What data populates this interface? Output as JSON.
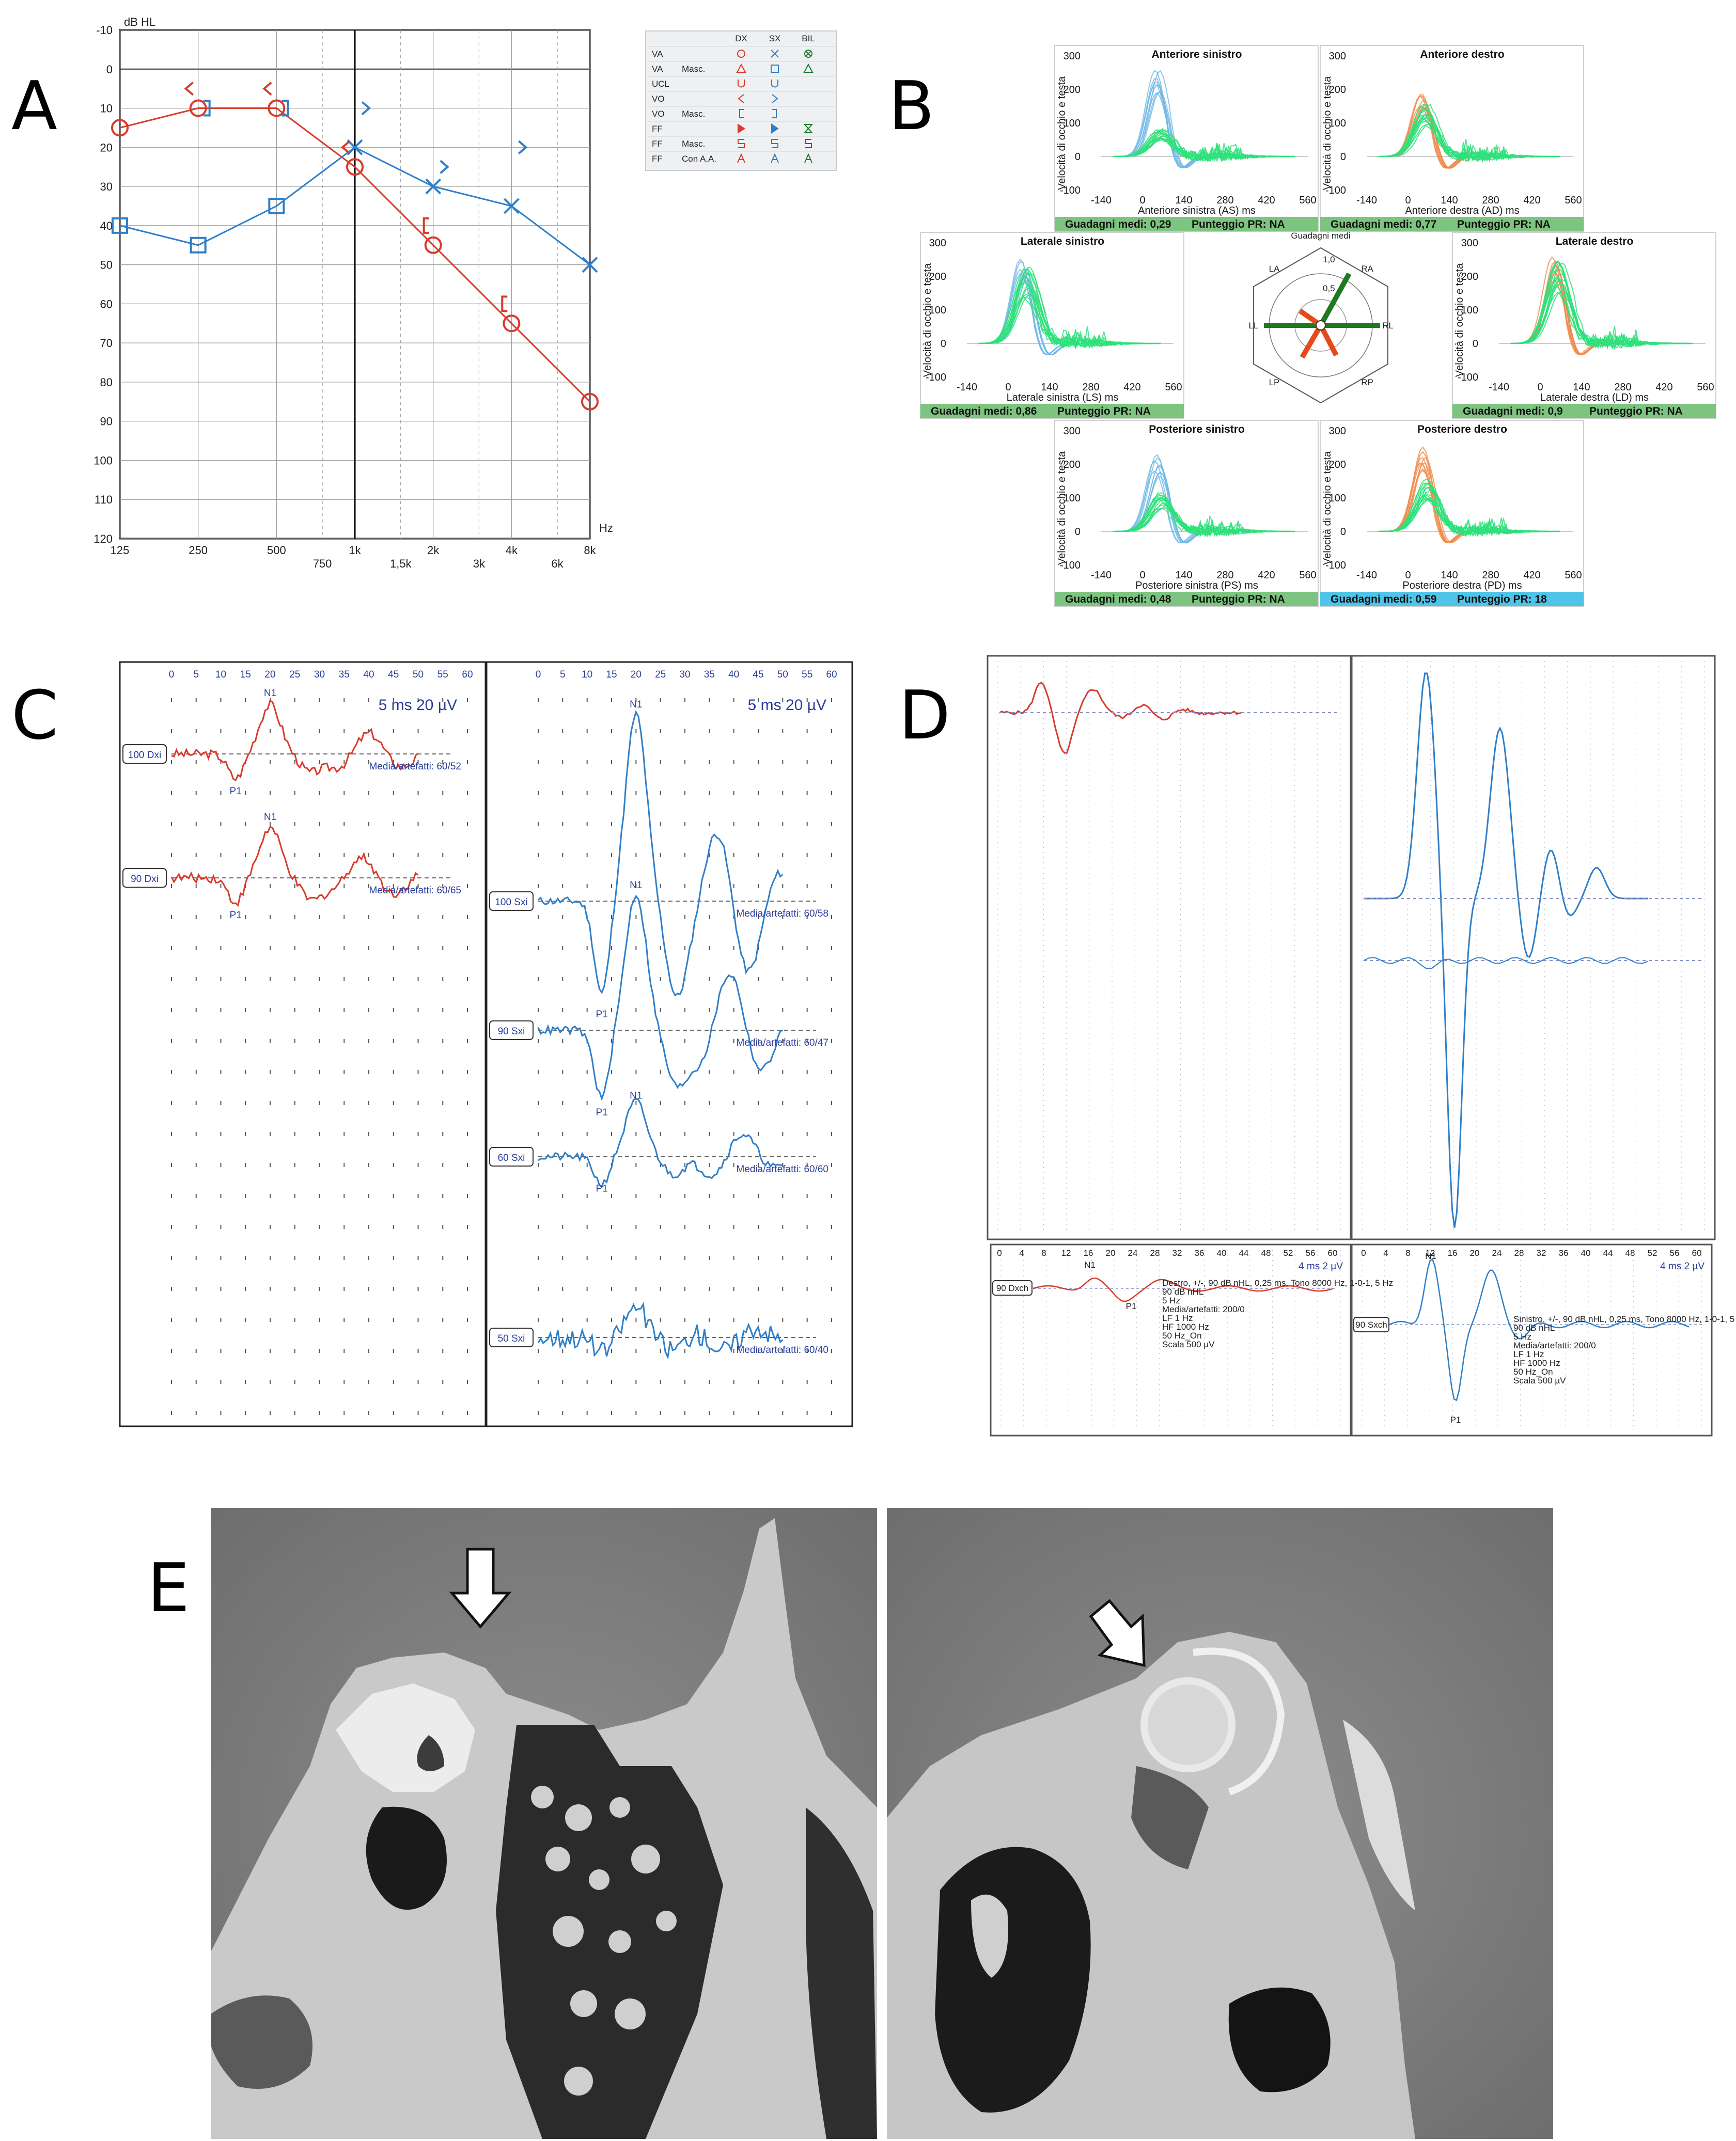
{
  "panel_letters": [
    "A",
    "B",
    "C",
    "D",
    "E"
  ],
  "colors": {
    "right_ear": "#d93a2b",
    "left_ear": "#2f7fc8",
    "vhit_normal": "#2ee07a",
    "vhit_head_left": "#6fb8e6",
    "vhit_head_right": "#f08a4b",
    "green_bar": "#7cc47f",
    "cyan_bar": "#4fc3e8",
    "waveform_blue": "#2a3d9a"
  },
  "chart_data": [
    {
      "panel": "A",
      "type": "line",
      "ylabel": "dB HL",
      "xunit": "Hz",
      "y_ticks": [
        "-10",
        "0",
        "10",
        "20",
        "30",
        "40",
        "50",
        "60",
        "70",
        "80",
        "90",
        "100",
        "110",
        "120"
      ],
      "x_ticks_main": [
        "125",
        "250",
        "500",
        "1k",
        "2k",
        "4k",
        "8k"
      ],
      "x_ticks_inter": [
        "750",
        "1,5k",
        "3k",
        "6k"
      ],
      "ylim": [
        -10,
        120
      ],
      "y_inverted": true,
      "series": [
        {
          "ear": "right",
          "symbol": "circle",
          "x": [
            "125",
            "250",
            "500",
            "1k",
            "2k",
            "4k",
            "8k"
          ],
          "values": [
            15,
            10,
            10,
            25,
            45,
            65,
            85
          ]
        },
        {
          "ear": "left",
          "symbol": "square/cross",
          "x": [
            "125",
            "250",
            "500",
            "1k",
            "2k",
            "4k",
            "8k"
          ],
          "values": [
            40,
            45,
            35,
            20,
            30,
            35,
            50
          ]
        }
      ],
      "bone_right": [
        {
          "x": "250",
          "y": 5
        },
        {
          "x": "500",
          "y": 5
        },
        {
          "x": "1k",
          "y": 20
        },
        {
          "x": "2k",
          "y": 40
        },
        {
          "x": "4k",
          "y": 60
        }
      ],
      "bone_left": [
        {
          "x": "1k",
          "y": 10
        },
        {
          "x": "2k",
          "y": 25
        },
        {
          "x": "4k",
          "y": 20
        }
      ],
      "masked_bone_left": [
        {
          "x": "250",
          "y": 10
        },
        {
          "x": "500",
          "y": 10
        }
      ],
      "legend": {
        "headers": [
          "DX",
          "SX",
          "BIL"
        ],
        "rows": [
          {
            "label": "VA",
            "sub": ""
          },
          {
            "label": "VA",
            "sub": "Masc."
          },
          {
            "label": "UCL",
            "sub": ""
          },
          {
            "label": "VO",
            "sub": ""
          },
          {
            "label": "VO",
            "sub": "Masc."
          },
          {
            "label": "FF",
            "sub": ""
          },
          {
            "label": "FF",
            "sub": "Masc."
          },
          {
            "label": "FF",
            "sub": "Con A.A."
          }
        ]
      }
    },
    {
      "panel": "B",
      "type": "line",
      "ylabel": "Velocità di occhio e testa",
      "x_ticks": [
        "-140",
        "0",
        "140",
        "280",
        "420",
        "560"
      ],
      "y_ticks": [
        "300",
        "200",
        "100",
        "0",
        "-100"
      ],
      "center": {
        "title": "Guadagni medi",
        "labels": [
          "LA",
          "RA",
          "LL",
          "RL",
          "LP",
          "RP"
        ],
        "rings": [
          "0,5",
          "1,0"
        ]
      },
      "subplots": [
        {
          "title": "Anteriore sinistro",
          "xlabel": "Anteriore sinistra (AS) ms",
          "gain": "Guadagni medi: 0,29",
          "score": "Punteggio PR: NA",
          "head": "left",
          "bar": "green"
        },
        {
          "title": "Anteriore destro",
          "xlabel": "Anteriore destra (AD) ms",
          "gain": "Guadagni medi: 0,77",
          "score": "Punteggio PR: NA",
          "head": "right",
          "bar": "green"
        },
        {
          "title": "Laterale sinistro",
          "xlabel": "Laterale sinistra (LS) ms",
          "gain": "Guadagni medi: 0,86",
          "score": "Punteggio PR: NA",
          "head": "left",
          "bar": "green"
        },
        {
          "title": "Laterale destro",
          "xlabel": "Laterale destra (LD) ms",
          "gain": "Guadagni medi: 0,9",
          "score": "Punteggio PR: NA",
          "head": "right",
          "bar": "green"
        },
        {
          "title": "Posteriore sinistro",
          "xlabel": "Posteriore sinistra (PS) ms",
          "gain": "Guadagni medi: 0,48",
          "score": "Punteggio PR: NA",
          "head": "left",
          "bar": "green"
        },
        {
          "title": "Posteriore destro",
          "xlabel": "Posteriore destra (PD) ms",
          "gain": "Guadagni medi: 0,59",
          "score": "Punteggio PR: 18",
          "head": "right",
          "bar": "cyan"
        }
      ]
    },
    {
      "panel": "C",
      "type": "line",
      "x_ticks": [
        "0",
        "5",
        "10",
        "15",
        "20",
        "25",
        "30",
        "35",
        "40",
        "45",
        "50",
        "55",
        "60"
      ],
      "scale": "5 ms   20 µV",
      "left_traces": [
        {
          "label": "100 Dxi",
          "note": "Media/artefatti: 60/52"
        },
        {
          "label": "90 Dxi",
          "note": "Media/artefatti: 60/65"
        }
      ],
      "right_traces": [
        {
          "label": "100 Sxi",
          "note": "Media/artefatti: 60/58"
        },
        {
          "label": "90 Sxi",
          "note": "Media/artefatti: 60/47"
        },
        {
          "label": "60 Sxi",
          "note": "Media/artefatti: 60/60"
        },
        {
          "label": "50 Sxi",
          "note": "Media/artefatti: 60/40"
        }
      ],
      "peaks": [
        "N1",
        "P1"
      ]
    },
    {
      "panel": "D",
      "type": "line",
      "x_ticks": [
        "0",
        "4",
        "8",
        "12",
        "16",
        "20",
        "24",
        "28",
        "32",
        "36",
        "40",
        "44",
        "48",
        "52",
        "56",
        "60"
      ],
      "scale": "4 ms   2 µV",
      "bottom_left": {
        "label": "90 Dxch",
        "notes": [
          "Destro, +/-, 90 dB nHL, 0,25 ms, Tono 8000 Hz, 1-0-1, 5 Hz",
          "90 dB nHL",
          "5 Hz",
          "Media/artefatti: 200/0",
          "LF 1 Hz",
          "HF 1000 Hz",
          "50 Hz_On",
          "Scala 500 µV"
        ]
      },
      "bottom_right": {
        "label": "90 Sxch",
        "notes": [
          "Sinistro, +/-, 90 dB nHL, 0,25 ms, Tono 8000 Hz, 1-0-1, 5 Hz",
          "90 dB nHL",
          "5 Hz",
          "Media/artefatti: 200/0",
          "LF 1 Hz",
          "HF 1000 Hz",
          "50 Hz_On",
          "Scala 500 µV"
        ]
      },
      "peaks": [
        "N1",
        "P1"
      ]
    }
  ]
}
